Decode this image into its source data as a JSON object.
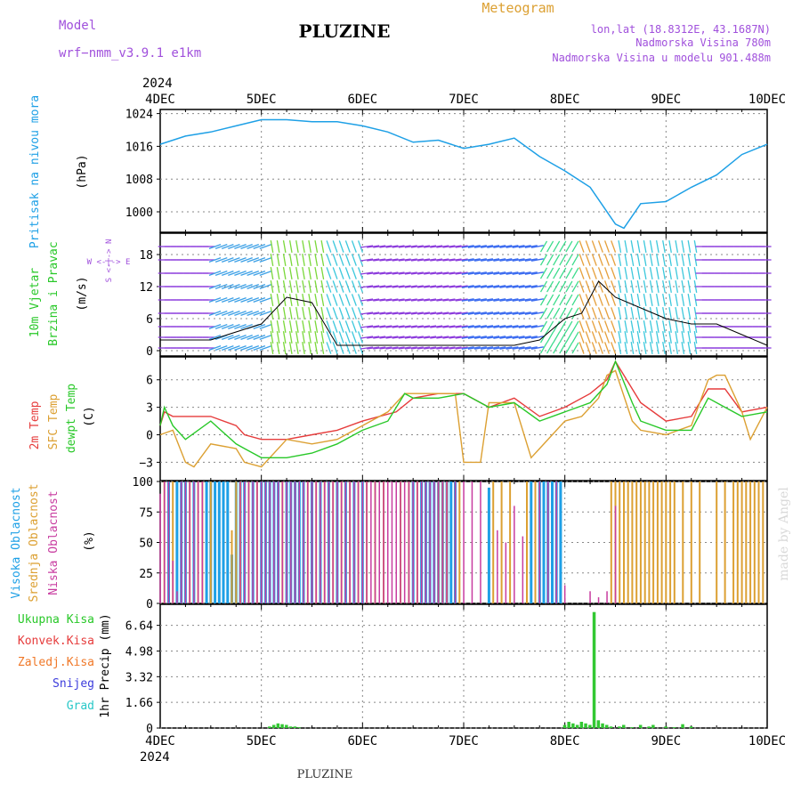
{
  "header": {
    "model_label": "Model",
    "model_name": "wrf−nmm_v3.9.1  e1km",
    "station": "PLUZINE",
    "product": "Meteogram",
    "coords": "lon,lat (18.8312E, 43.1687N)",
    "elevation": "Nadmorska Visina 780m",
    "elevation_model": "Nadmorska Visina u modelu 901.488m",
    "footer_station": "PLUZINE",
    "watermark": "made by Angel"
  },
  "time_axis": {
    "year": "2024",
    "ticks": [
      "4DEC",
      "5DEC",
      "6DEC",
      "7DEC",
      "8DEC",
      "9DEC",
      "10DEC"
    ],
    "hours": 144
  },
  "colors": {
    "pressure": "#1ea0e6",
    "t2m": "#e63c3c",
    "sfc": "#dca032",
    "dewpt": "#28c828",
    "high_cloud": "#1ea0e6",
    "mid_cloud": "#dca032",
    "low_cloud": "#c83ca0",
    "precip": "#32c832",
    "wind_label": "#a050dc"
  },
  "panels": {
    "pressure": {
      "label": "Pritisak na nivou mora",
      "unit": "(hPa)"
    },
    "wind": {
      "label1": "10m Vjetar",
      "label2": "Brzina i Pravac",
      "unit": "(m/s)",
      "compass": "W <-|-> E",
      "compass_v": "S <-|-> N"
    },
    "temp": {
      "label1": "2m Temp",
      "label2": "SFC Temp",
      "label3": "dewpt Temp",
      "unit": "(C)"
    },
    "cloud": {
      "label1": "Visoka Oblacnost",
      "label2": "Srednja Oblacnost",
      "label3": "Niska Oblacnost",
      "unit": "(%)"
    },
    "precip": {
      "unit": "1hr Precip (mm)",
      "legend": [
        "Ukupna Kisa",
        "Konvek.Kisa",
        "Zaledj.Kisa",
        "Snijeg",
        "Grad"
      ]
    }
  },
  "chart_data": [
    {
      "type": "line",
      "title": "Pritisak na nivou mora",
      "ylabel": "(hPa)",
      "ylim": [
        995,
        1025
      ],
      "yticks": [
        1000,
        1008,
        1016,
        1024
      ],
      "grid": true,
      "series": [
        {
          "name": "Pritisak na nivou mora",
          "x": [
            0,
            6,
            12,
            18,
            24,
            30,
            36,
            42,
            48,
            54,
            60,
            66,
            72,
            78,
            84,
            90,
            96,
            102,
            108,
            110,
            114,
            120,
            126,
            132,
            138,
            144
          ],
          "y": [
            1016.5,
            1018.5,
            1019.5,
            1021,
            1022.5,
            1022.5,
            1022,
            1022,
            1021,
            1019.5,
            1017,
            1017.5,
            1015.5,
            1016.5,
            1018,
            1013.5,
            1010,
            1006,
            997,
            996,
            1002,
            1002.5,
            1006,
            1009,
            1014,
            1016.5
          ]
        }
      ]
    },
    {
      "type": "line",
      "title": "10m Vjetar Brzina i Pravac",
      "ylabel": "(m/s)",
      "ylim": [
        -1,
        22
      ],
      "yticks": [
        0,
        6,
        12,
        18
      ],
      "grid": true,
      "series": [
        {
          "name": "10m Vjetar",
          "x": [
            0,
            12,
            20,
            24,
            30,
            36,
            42,
            48,
            60,
            72,
            84,
            90,
            96,
            100,
            102,
            104,
            108,
            114,
            120,
            126,
            132,
            138,
            144
          ],
          "y": [
            2,
            2,
            4,
            5,
            10,
            9,
            1,
            1,
            1,
            1,
            1,
            2,
            6,
            7,
            10,
            13,
            10,
            8,
            6,
            5,
            5,
            3,
            1
          ]
        }
      ]
    },
    {
      "type": "line",
      "title": "2m Temp / SFC Temp / dewpt Temp",
      "ylabel": "(C)",
      "ylim": [
        -5,
        8.5
      ],
      "yticks": [
        -3,
        0,
        3,
        6
      ],
      "grid": true,
      "series": [
        {
          "name": "2m Temp",
          "x": [
            0,
            1,
            3,
            6,
            12,
            18,
            20,
            24,
            30,
            36,
            42,
            48,
            56,
            60,
            66,
            72,
            78,
            84,
            90,
            96,
            102,
            106,
            108,
            114,
            120,
            126,
            130,
            134,
            138,
            144
          ],
          "y": [
            1,
            2.5,
            2,
            2,
            2,
            1,
            0,
            -0.5,
            -0.5,
            0,
            0.5,
            1.5,
            2.5,
            4,
            4.5,
            4.5,
            3,
            4,
            2,
            3,
            4.5,
            6,
            8,
            3.5,
            1.5,
            2,
            5,
            5,
            2.5,
            3
          ]
        },
        {
          "name": "SFC Temp",
          "x": [
            0,
            3,
            6,
            8,
            12,
            18,
            20,
            24,
            30,
            36,
            42,
            48,
            54,
            58,
            60,
            66,
            70,
            72,
            76,
            78,
            84,
            88,
            90,
            96,
            100,
            104,
            106,
            108,
            112,
            114,
            120,
            126,
            130,
            132,
            134,
            138,
            140,
            144
          ],
          "y": [
            0,
            0.5,
            -3,
            -3.5,
            -1,
            -1.5,
            -3,
            -3.5,
            -0.5,
            -1,
            -0.5,
            1,
            2.5,
            4.5,
            4.5,
            4.5,
            4.5,
            -3,
            -3,
            3.5,
            3.5,
            -2.5,
            -1.5,
            1.5,
            2,
            4,
            6.5,
            7,
            1.5,
            0.5,
            0,
            1,
            6,
            6.5,
            6.5,
            2.5,
            -0.5,
            3
          ]
        },
        {
          "name": "dewpt Temp",
          "x": [
            0,
            1,
            3,
            6,
            12,
            18,
            20,
            24,
            30,
            36,
            42,
            48,
            54,
            58,
            60,
            66,
            72,
            78,
            84,
            90,
            96,
            102,
            106,
            108,
            112,
            114,
            120,
            126,
            130,
            134,
            138,
            144
          ],
          "y": [
            1,
            3,
            1,
            -0.5,
            1.5,
            -1,
            -1.5,
            -2.5,
            -2.5,
            -2,
            -1,
            0.5,
            1.5,
            4.5,
            4,
            4,
            4.5,
            3,
            3.5,
            1.5,
            2.5,
            3.5,
            5.5,
            8,
            3.5,
            1.5,
            0.5,
            0.5,
            4,
            3,
            2,
            2.5
          ]
        }
      ]
    },
    {
      "type": "bar",
      "title": "Visoka / Srednja / Niska Oblacnost",
      "ylabel": "(%)",
      "ylim": [
        0,
        100
      ],
      "yticks": [
        0,
        25,
        50,
        75,
        100
      ],
      "grid": true,
      "series": [
        {
          "name": "Visoka Oblacnost",
          "x": [
            2,
            4,
            5,
            6,
            8,
            11,
            12,
            13,
            14,
            15,
            16,
            17,
            18,
            19,
            20,
            22,
            24,
            25,
            26,
            27,
            28,
            30,
            31,
            32,
            33,
            34,
            36,
            38,
            40,
            42,
            44,
            46,
            48,
            60,
            62,
            63,
            64,
            65,
            66,
            67,
            68,
            69,
            70,
            78,
            88,
            90,
            91,
            92,
            93,
            94,
            95
          ],
          "y": [
            100,
            100,
            100,
            100,
            100,
            100,
            100,
            100,
            100,
            100,
            100,
            40,
            100,
            100,
            100,
            100,
            100,
            100,
            100,
            100,
            100,
            100,
            100,
            100,
            100,
            100,
            100,
            100,
            100,
            100,
            100,
            100,
            100,
            100,
            100,
            100,
            100,
            100,
            100,
            100,
            100,
            100,
            100,
            95,
            100,
            100,
            100,
            100,
            100,
            100,
            100
          ]
        },
        {
          "name": "Srednja Oblacnost",
          "x": [
            1,
            3,
            7,
            9,
            10,
            12,
            17,
            18,
            19,
            21,
            23,
            29,
            35,
            37,
            39,
            41,
            43,
            45,
            47,
            49,
            51,
            53,
            57,
            59,
            61,
            66,
            67,
            68,
            71,
            79,
            81,
            83,
            87,
            89,
            107,
            108,
            109,
            110,
            111,
            112,
            113,
            114,
            115,
            116,
            117,
            118,
            119,
            120,
            121,
            122,
            124,
            126,
            128,
            132,
            134,
            136,
            137,
            138,
            139,
            140,
            141,
            142,
            143
          ],
          "y": [
            100,
            100,
            100,
            100,
            100,
            100,
            60,
            100,
            100,
            100,
            100,
            100,
            100,
            100,
            100,
            100,
            100,
            100,
            100,
            100,
            100,
            100,
            100,
            100,
            100,
            100,
            100,
            100,
            100,
            100,
            100,
            100,
            100,
            100,
            100,
            100,
            100,
            100,
            100,
            100,
            100,
            100,
            100,
            100,
            100,
            100,
            100,
            100,
            100,
            100,
            100,
            100,
            100,
            100,
            100,
            100,
            100,
            100,
            100,
            100,
            100,
            100,
            100
          ]
        },
        {
          "name": "Niska Oblacnost",
          "x": [
            0,
            1,
            2,
            3,
            4,
            5,
            6,
            7,
            8,
            9,
            10,
            19,
            20,
            21,
            22,
            23,
            24,
            25,
            26,
            27,
            28,
            29,
            30,
            31,
            32,
            33,
            34,
            35,
            36,
            37,
            38,
            39,
            40,
            41,
            42,
            43,
            44,
            45,
            46,
            47,
            48,
            49,
            50,
            51,
            52,
            53,
            54,
            55,
            56,
            57,
            58,
            59,
            60,
            61,
            62,
            63,
            64,
            65,
            66,
            67,
            68,
            70,
            72,
            74,
            76,
            80,
            82,
            84,
            86,
            90,
            92,
            94,
            96,
            102,
            104,
            106,
            108
          ],
          "y": [
            90,
            100,
            100,
            35,
            10,
            100,
            100,
            100,
            100,
            100,
            100,
            100,
            100,
            100,
            100,
            100,
            100,
            100,
            100,
            100,
            100,
            100,
            100,
            100,
            100,
            100,
            100,
            100,
            100,
            100,
            100,
            100,
            100,
            100,
            100,
            100,
            100,
            100,
            100,
            100,
            100,
            100,
            100,
            100,
            100,
            100,
            100,
            100,
            100,
            100,
            100,
            100,
            100,
            100,
            100,
            100,
            100,
            100,
            100,
            100,
            100,
            100,
            100,
            100,
            100,
            60,
            50,
            80,
            55,
            100,
            100,
            100,
            15,
            10,
            5,
            10,
            80
          ]
        }
      ]
    },
    {
      "type": "bar",
      "title": "1hr Precip",
      "ylabel": "1hr Precip (mm)",
      "ylim": [
        0,
        8
      ],
      "yticks": [
        0,
        1.66,
        3.32,
        4.98,
        6.64
      ],
      "grid": true,
      "series": [
        {
          "name": "Ukupna Kisa",
          "x": [
            26,
            27,
            28,
            29,
            30,
            31,
            32,
            33,
            96,
            97,
            98,
            99,
            100,
            101,
            102,
            103,
            104,
            105,
            106,
            107,
            109,
            110,
            112,
            114,
            116,
            117,
            120,
            122,
            124,
            126
          ],
          "y": [
            0.1,
            0.2,
            0.3,
            0.25,
            0.2,
            0.1,
            0.1,
            0.05,
            0.2,
            0.4,
            0.3,
            0.2,
            0.4,
            0.3,
            0.2,
            7.5,
            0.5,
            0.3,
            0.2,
            0.1,
            0.1,
            0.2,
            0.05,
            0.2,
            0.1,
            0.2,
            0.1,
            0.05,
            0.25,
            0.1
          ]
        }
      ]
    }
  ]
}
